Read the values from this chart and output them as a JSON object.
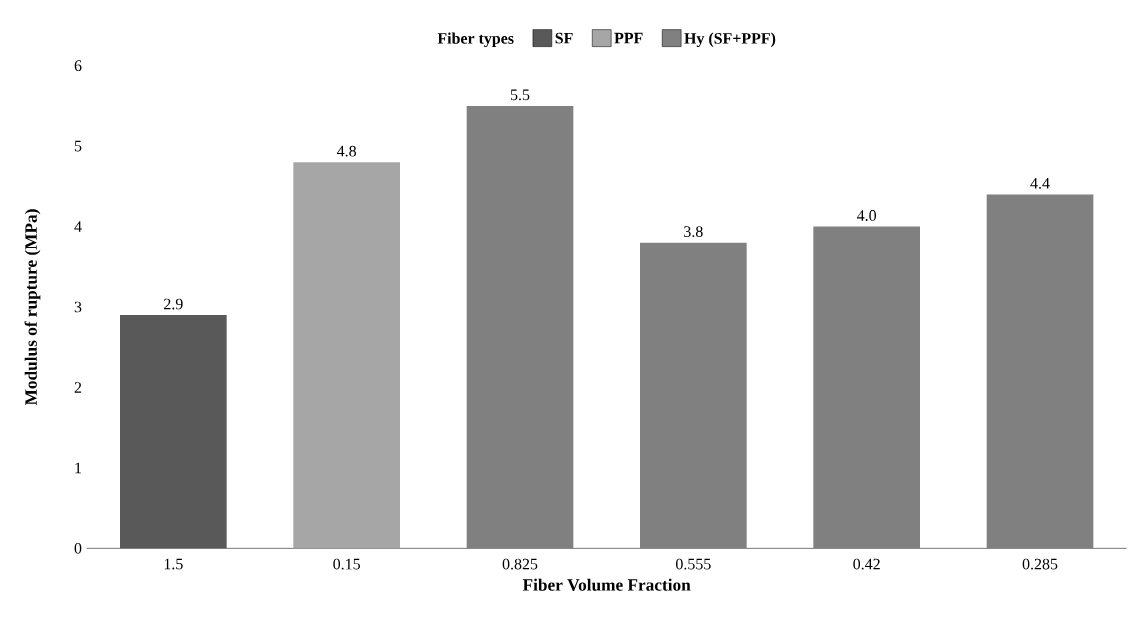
{
  "chart_data": {
    "type": "bar",
    "xlabel": "Fiber Volume Fraction",
    "ylabel": "Modulus of rupture  (MPa)",
    "legend_title": "Fiber types",
    "legend": "top",
    "categories": [
      "1.5",
      "0.15",
      "0.825",
      "0.555",
      "0.42",
      "0.285"
    ],
    "series": [
      {
        "name": "SF",
        "color": "#595959",
        "values": [
          2.9,
          null,
          null,
          null,
          null,
          null
        ],
        "value_labels": [
          "2.9",
          null,
          null,
          null,
          null,
          null
        ]
      },
      {
        "name": "PPF",
        "color": "#a6a6a6",
        "values": [
          null,
          4.8,
          null,
          null,
          null,
          null
        ],
        "value_labels": [
          null,
          "4.8",
          null,
          null,
          null,
          null
        ]
      },
      {
        "name": "Hy (SF+PPF)",
        "color": "#808080",
        "values": [
          null,
          null,
          5.5,
          3.8,
          4.0,
          4.4
        ],
        "value_labels": [
          null,
          null,
          "5.5",
          "3.8",
          "4.0",
          "4.4"
        ]
      }
    ],
    "ylim": [
      0,
      6
    ],
    "yticks": [
      0,
      1,
      2,
      3,
      4,
      5,
      6
    ],
    "grid": false
  }
}
